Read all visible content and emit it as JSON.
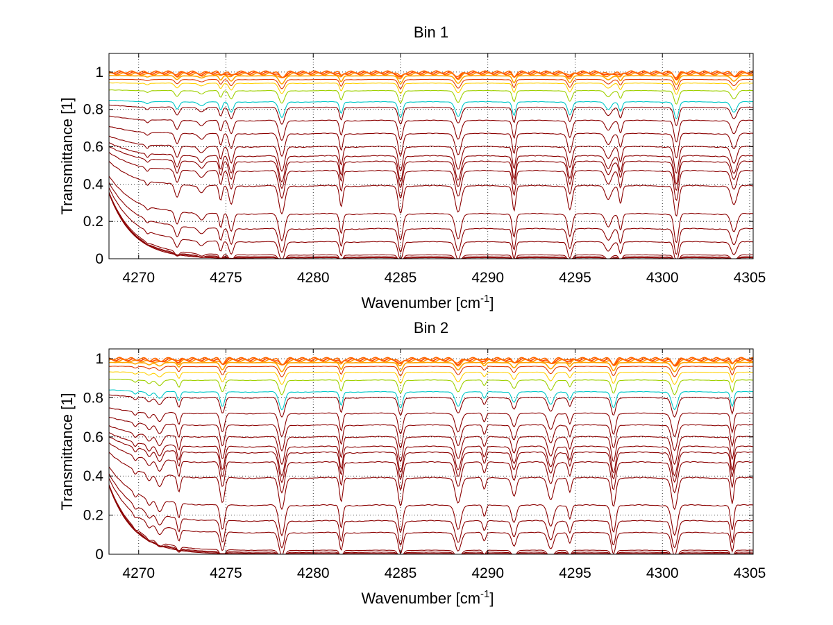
{
  "chart_data": [
    {
      "type": "line",
      "title": "Bin 1",
      "xlabel": "Wavenumber [cm",
      "xlabel_sup": "-1",
      "xlabel_end": "]",
      "ylabel": "Transmittance [1]",
      "xlim": [
        4268.3,
        4305.2
      ],
      "ylim": [
        0,
        1.1
      ],
      "xticks": [
        4270,
        4275,
        4280,
        4285,
        4290,
        4295,
        4300,
        4305
      ],
      "xtick_labels": [
        "4270",
        "4275",
        "4280",
        "4285",
        "4290",
        "4295",
        "4300",
        "4305"
      ],
      "yticks": [
        0,
        0.2,
        0.4,
        0.6,
        0.8,
        1
      ],
      "ytick_labels": [
        "0",
        "0.2",
        "0.4",
        "0.6",
        "0.8",
        "1"
      ],
      "grid": "dotted",
      "series_color": "#8b0000",
      "top_colors": [
        "#ff6a00",
        "#ff4500",
        "#ff8c00",
        "#ffa500",
        "#e03a00",
        "#ffd000",
        "#9fd000",
        "#00c8c8"
      ],
      "baselines": [
        0.0,
        0.005,
        0.01,
        0.02,
        0.09,
        0.16,
        0.24,
        0.39,
        0.47,
        0.52,
        0.55,
        0.6,
        0.67,
        0.74,
        0.81,
        0.84,
        0.9,
        0.94,
        0.96,
        0.98,
        0.99,
        0.995,
        1.0
      ],
      "absorption_lines": [
        {
          "x": 4270.5,
          "depth": 0.1
        },
        {
          "x": 4272.2,
          "depth": 0.35
        },
        {
          "x": 4273.6,
          "depth": 0.18
        },
        {
          "x": 4274.7,
          "depth": 0.4
        },
        {
          "x": 4275.3,
          "depth": 0.5
        },
        {
          "x": 4278.2,
          "depth": 0.75
        },
        {
          "x": 4281.6,
          "depth": 0.55
        },
        {
          "x": 4285.0,
          "depth": 0.72
        },
        {
          "x": 4288.3,
          "depth": 0.68
        },
        {
          "x": 4291.5,
          "depth": 0.65
        },
        {
          "x": 4294.7,
          "depth": 0.62
        },
        {
          "x": 4296.9,
          "depth": 0.35
        },
        {
          "x": 4297.6,
          "depth": 0.45
        },
        {
          "x": 4300.8,
          "depth": 0.8
        },
        {
          "x": 4304.1,
          "depth": 0.5
        }
      ]
    },
    {
      "type": "line",
      "title": "Bin 2",
      "xlabel": "Wavenumber [cm",
      "xlabel_sup": "-1",
      "xlabel_end": "]",
      "ylabel": "Transmittance [1]",
      "xlim": [
        4268.3,
        4305.2
      ],
      "ylim": [
        0,
        1.05
      ],
      "xticks": [
        4270,
        4275,
        4280,
        4285,
        4290,
        4295,
        4300,
        4305
      ],
      "xtick_labels": [
        "4270",
        "4275",
        "4280",
        "4285",
        "4290",
        "4295",
        "4300",
        "4305"
      ],
      "yticks": [
        0,
        0.2,
        0.4,
        0.6,
        0.8,
        1
      ],
      "ytick_labels": [
        "0",
        "0.2",
        "0.4",
        "0.6",
        "0.8",
        "1"
      ],
      "grid": "dotted",
      "series_color": "#8b0000",
      "top_colors": [
        "#ff6a00",
        "#ff4500",
        "#ff8c00",
        "#ffa500",
        "#e03a00",
        "#ffd000",
        "#9fd000",
        "#00c8c8"
      ],
      "baselines": [
        0.0,
        0.005,
        0.01,
        0.02,
        0.11,
        0.17,
        0.25,
        0.39,
        0.47,
        0.52,
        0.55,
        0.6,
        0.66,
        0.72,
        0.8,
        0.83,
        0.89,
        0.93,
        0.96,
        0.98,
        0.99,
        0.995,
        1.0
      ],
      "absorption_lines": [
        {
          "x": 4269.8,
          "depth": 0.12
        },
        {
          "x": 4270.6,
          "depth": 0.18
        },
        {
          "x": 4271.2,
          "depth": 0.3
        },
        {
          "x": 4272.3,
          "depth": 0.4
        },
        {
          "x": 4274.8,
          "depth": 0.65
        },
        {
          "x": 4278.2,
          "depth": 0.8
        },
        {
          "x": 4281.6,
          "depth": 0.6
        },
        {
          "x": 4285.0,
          "depth": 0.7
        },
        {
          "x": 4288.3,
          "depth": 0.62
        },
        {
          "x": 4289.8,
          "depth": 0.3
        },
        {
          "x": 4291.5,
          "depth": 0.45
        },
        {
          "x": 4293.6,
          "depth": 0.55
        },
        {
          "x": 4294.7,
          "depth": 0.35
        },
        {
          "x": 4297.2,
          "depth": 0.7
        },
        {
          "x": 4300.7,
          "depth": 0.78
        },
        {
          "x": 4304.0,
          "depth": 0.65
        }
      ]
    }
  ]
}
